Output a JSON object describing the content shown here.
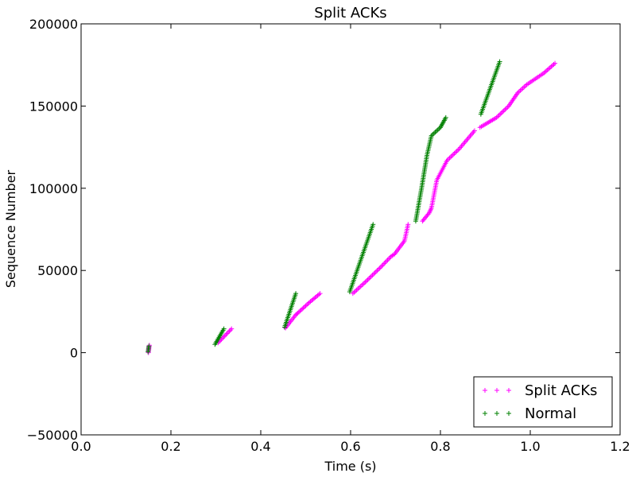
{
  "chart_data": {
    "type": "scatter",
    "title": "Split ACKs",
    "xlabel": "Time (s)",
    "ylabel": "Sequence Number",
    "xlim": [
      0.0,
      1.2
    ],
    "ylim": [
      -50000,
      200000
    ],
    "xticks": [
      0.0,
      0.2,
      0.4,
      0.6,
      0.8,
      1.0,
      1.2
    ],
    "xtick_labels": [
      "0.0",
      "0.2",
      "0.4",
      "0.6",
      "0.8",
      "1.0",
      "1.2"
    ],
    "yticks": [
      -50000,
      0,
      50000,
      100000,
      150000,
      200000
    ],
    "ytick_labels": [
      "−50000",
      "0",
      "50000",
      "100000",
      "150000",
      "200000"
    ],
    "grid": false,
    "legend_position": "lower-right",
    "marker": "+",
    "series": [
      {
        "name": "Split ACKs",
        "color": "#ff00ff",
        "segments": [
          {
            "x": [
              0.15,
              0.152
            ],
            "y": [
              0,
              4500
            ]
          },
          {
            "x": [
              0.305,
              0.335
            ],
            "y": [
              6000,
              14500
            ]
          },
          {
            "x": [
              0.455,
              0.478,
              0.482,
              0.5,
              0.508,
              0.532
            ],
            "y": [
              15000,
              23000,
              24000,
              28500,
              30500,
              36000
            ]
          },
          {
            "x": [
              0.605,
              0.633,
              0.667,
              0.69,
              0.698,
              0.72,
              0.728
            ],
            "y": [
              36000,
              43000,
              52000,
              58500,
              60000,
              68000,
              78000
            ]
          },
          {
            "x": [
              0.76,
              0.775,
              0.78,
              0.792,
              0.815,
              0.842,
              0.876
            ],
            "y": [
              80000,
              85000,
              88000,
              105000,
              117000,
              124000,
              135000
            ]
          },
          {
            "x": [
              0.888,
              0.925,
              0.952,
              0.972,
              0.992,
              1.03,
              1.055
            ],
            "y": [
              137000,
              143000,
              150000,
              158000,
              163000,
              170000,
              176000
            ]
          }
        ]
      },
      {
        "name": "Normal",
        "color": "#008000",
        "segments": [
          {
            "x": [
              0.149,
              0.151
            ],
            "y": [
              500,
              4000
            ]
          },
          {
            "x": [
              0.298,
              0.318
            ],
            "y": [
              5000,
              14500
            ]
          },
          {
            "x": [
              0.453,
              0.478
            ],
            "y": [
              15500,
              36000
            ]
          },
          {
            "x": [
              0.598,
              0.65
            ],
            "y": [
              37000,
              78000
            ]
          },
          {
            "x": [
              0.745,
              0.758,
              0.77,
              0.78,
              0.8,
              0.812
            ],
            "y": [
              80000,
              100000,
              120000,
              132000,
              137000,
              143000
            ]
          },
          {
            "x": [
              0.89,
              0.932
            ],
            "y": [
              145000,
              177000
            ]
          }
        ]
      }
    ]
  }
}
